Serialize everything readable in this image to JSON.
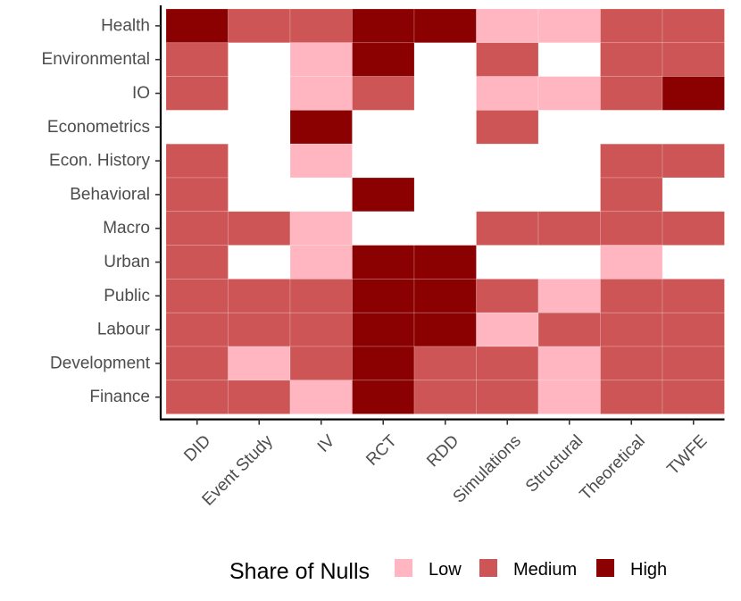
{
  "chart_data": {
    "type": "heatmap",
    "title": "",
    "xlabel": "",
    "ylabel": "",
    "x_categories": [
      "DID",
      "Event Study",
      "IV",
      "RCT",
      "RDD",
      "Simulations",
      "Structural",
      "Theoretical",
      "TWFE"
    ],
    "y_categories": [
      "Health",
      "Environmental",
      "IO",
      "Econometrics",
      "Econ. History",
      "Behavioral",
      "Macro",
      "Urban",
      "Public",
      "Labour",
      "Development",
      "Finance"
    ],
    "cells": [
      [
        "High",
        "Medium",
        "Medium",
        "High",
        "High",
        "Low",
        "Low",
        "Medium",
        "Medium"
      ],
      [
        "Medium",
        null,
        "Low",
        "High",
        null,
        "Medium",
        null,
        "Medium",
        "Medium"
      ],
      [
        "Medium",
        null,
        "Low",
        "Medium",
        null,
        "Low",
        "Low",
        "Medium",
        "High"
      ],
      [
        null,
        null,
        "High",
        null,
        null,
        "Medium",
        null,
        null,
        null
      ],
      [
        "Medium",
        null,
        "Low",
        null,
        null,
        null,
        null,
        "Medium",
        "Medium"
      ],
      [
        "Medium",
        null,
        null,
        "High",
        null,
        null,
        null,
        "Medium",
        null
      ],
      [
        "Medium",
        "Medium",
        "Low",
        null,
        null,
        "Medium",
        "Medium",
        "Medium",
        "Medium"
      ],
      [
        "Medium",
        null,
        "Low",
        "High",
        "High",
        null,
        null,
        "Low",
        null
      ],
      [
        "Medium",
        "Medium",
        "Medium",
        "High",
        "High",
        "Medium",
        "Low",
        "Medium",
        "Medium"
      ],
      [
        "Medium",
        "Medium",
        "Medium",
        "High",
        "High",
        "Low",
        "Medium",
        "Medium",
        "Medium"
      ],
      [
        "Medium",
        "Low",
        "Medium",
        "High",
        "Medium",
        "Medium",
        "Low",
        "Medium",
        "Medium"
      ],
      [
        "Medium",
        "Medium",
        "Low",
        "High",
        "Medium",
        "Medium",
        "Low",
        "Medium",
        "Medium"
      ]
    ],
    "legend": {
      "title": "Share of Nulls",
      "position": "bottom",
      "levels": [
        {
          "label": "Low",
          "color": "#ffb6c1"
        },
        {
          "label": "Medium",
          "color": "#cd5555"
        },
        {
          "label": "High",
          "color": "#8b0000"
        }
      ]
    },
    "grid": false,
    "x_tick_rotation_deg": 45
  }
}
